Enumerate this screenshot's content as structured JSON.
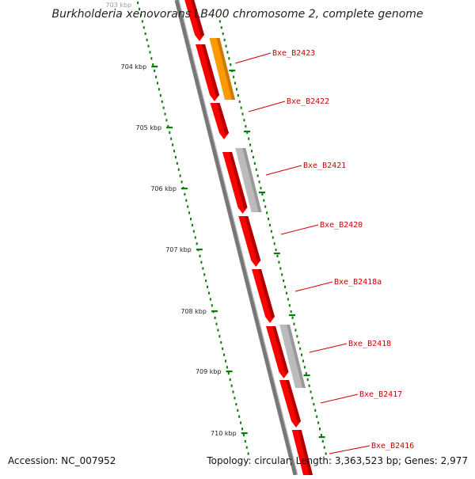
{
  "header": {
    "title": "Burkholderia xenovorans LB400 chromosome 2, complete genome"
  },
  "footer": {
    "accession": "Accession: NC_007952",
    "topology": "Topology: circular; Length: 3,363,523 bp; Genes: 2,977"
  },
  "colors": {
    "forward_gene": "#ff0000",
    "forward_gene_shade": "#b20000",
    "rna_gene": "#ff9900",
    "pseudo_gene": "#bbbbbb",
    "tick": "#0a7a0a",
    "backbone": "#777777",
    "label": "#cc0000",
    "leader": "#cc0000"
  },
  "scale_ticks": [
    {
      "label": "703 kbp",
      "faded": true
    },
    {
      "label": "704 kbp"
    },
    {
      "label": "705 kbp"
    },
    {
      "label": "706 kbp"
    },
    {
      "label": "707 kbp"
    },
    {
      "label": "708 kbp"
    },
    {
      "label": "709 kbp"
    },
    {
      "label": "710 kbp"
    }
  ],
  "gene_labels": [
    {
      "label": "Bxe_B2423"
    },
    {
      "label": "Bxe_B2422"
    },
    {
      "label": "Bxe_B2421"
    },
    {
      "label": "Bxe_B2420"
    },
    {
      "label": "Bxe_B2418a"
    },
    {
      "label": "Bxe_B2418"
    },
    {
      "label": "Bxe_B2417"
    },
    {
      "label": "Bxe_B2416"
    }
  ]
}
